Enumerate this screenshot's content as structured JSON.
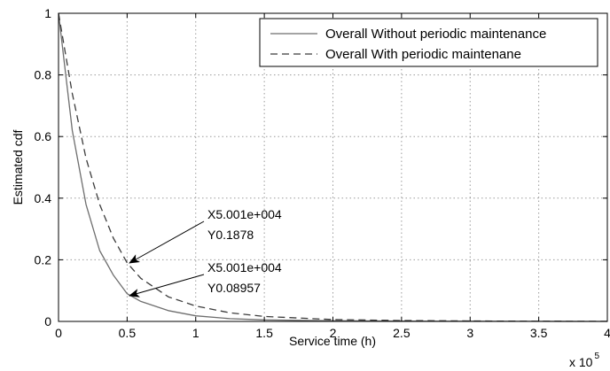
{
  "chart_data": {
    "type": "line",
    "title": "",
    "xlabel": "Service time (h)",
    "ylabel": "Estimated cdf",
    "x_multiplier": "x 10",
    "x_multiplier_exp": "5",
    "xlim": [
      0,
      400000
    ],
    "ylim": [
      0,
      1
    ],
    "grid": true,
    "legend_position": "top-right",
    "x_tick_labels": [
      "0",
      "0.5",
      "1",
      "1.5",
      "2",
      "2.5",
      "3",
      "3.5",
      "4"
    ],
    "y_tick_labels": [
      "0",
      "0.2",
      "0.4",
      "0.6",
      "0.8",
      "1"
    ],
    "series": [
      {
        "name": "Overall Without periodic maintenance",
        "line_style": "solid",
        "color": "#6e6e6e",
        "x": [
          0,
          10000,
          20000,
          30000,
          40000,
          50000,
          60000,
          80000,
          100000,
          125000,
          150000,
          200000,
          250000,
          300000,
          350000,
          400000
        ],
        "y": [
          1.0,
          0.62,
          0.38,
          0.23,
          0.15,
          0.09,
          0.065,
          0.035,
          0.018,
          0.009,
          0.005,
          0.002,
          0.001,
          0.0005,
          0.0002,
          0.0001
        ]
      },
      {
        "name": "Overall With periodic maintenane",
        "line_style": "dashed",
        "color": "#3c3c3c",
        "x": [
          0,
          10000,
          20000,
          30000,
          40000,
          50000,
          60000,
          80000,
          100000,
          125000,
          150000,
          200000,
          250000,
          300000,
          350000,
          400000
        ],
        "y": [
          1.0,
          0.74,
          0.53,
          0.38,
          0.27,
          0.19,
          0.14,
          0.08,
          0.05,
          0.028,
          0.016,
          0.006,
          0.003,
          0.0013,
          0.0006,
          0.0003
        ]
      }
    ],
    "annotations": [
      {
        "x_text": "X5.001e+004",
        "y_text": "Y0.1878",
        "x": 50010,
        "y": 0.1878
      },
      {
        "x_text": "X5.001e+004",
        "y_text": "Y0.08957",
        "x": 50010,
        "y": 0.08957
      }
    ]
  }
}
